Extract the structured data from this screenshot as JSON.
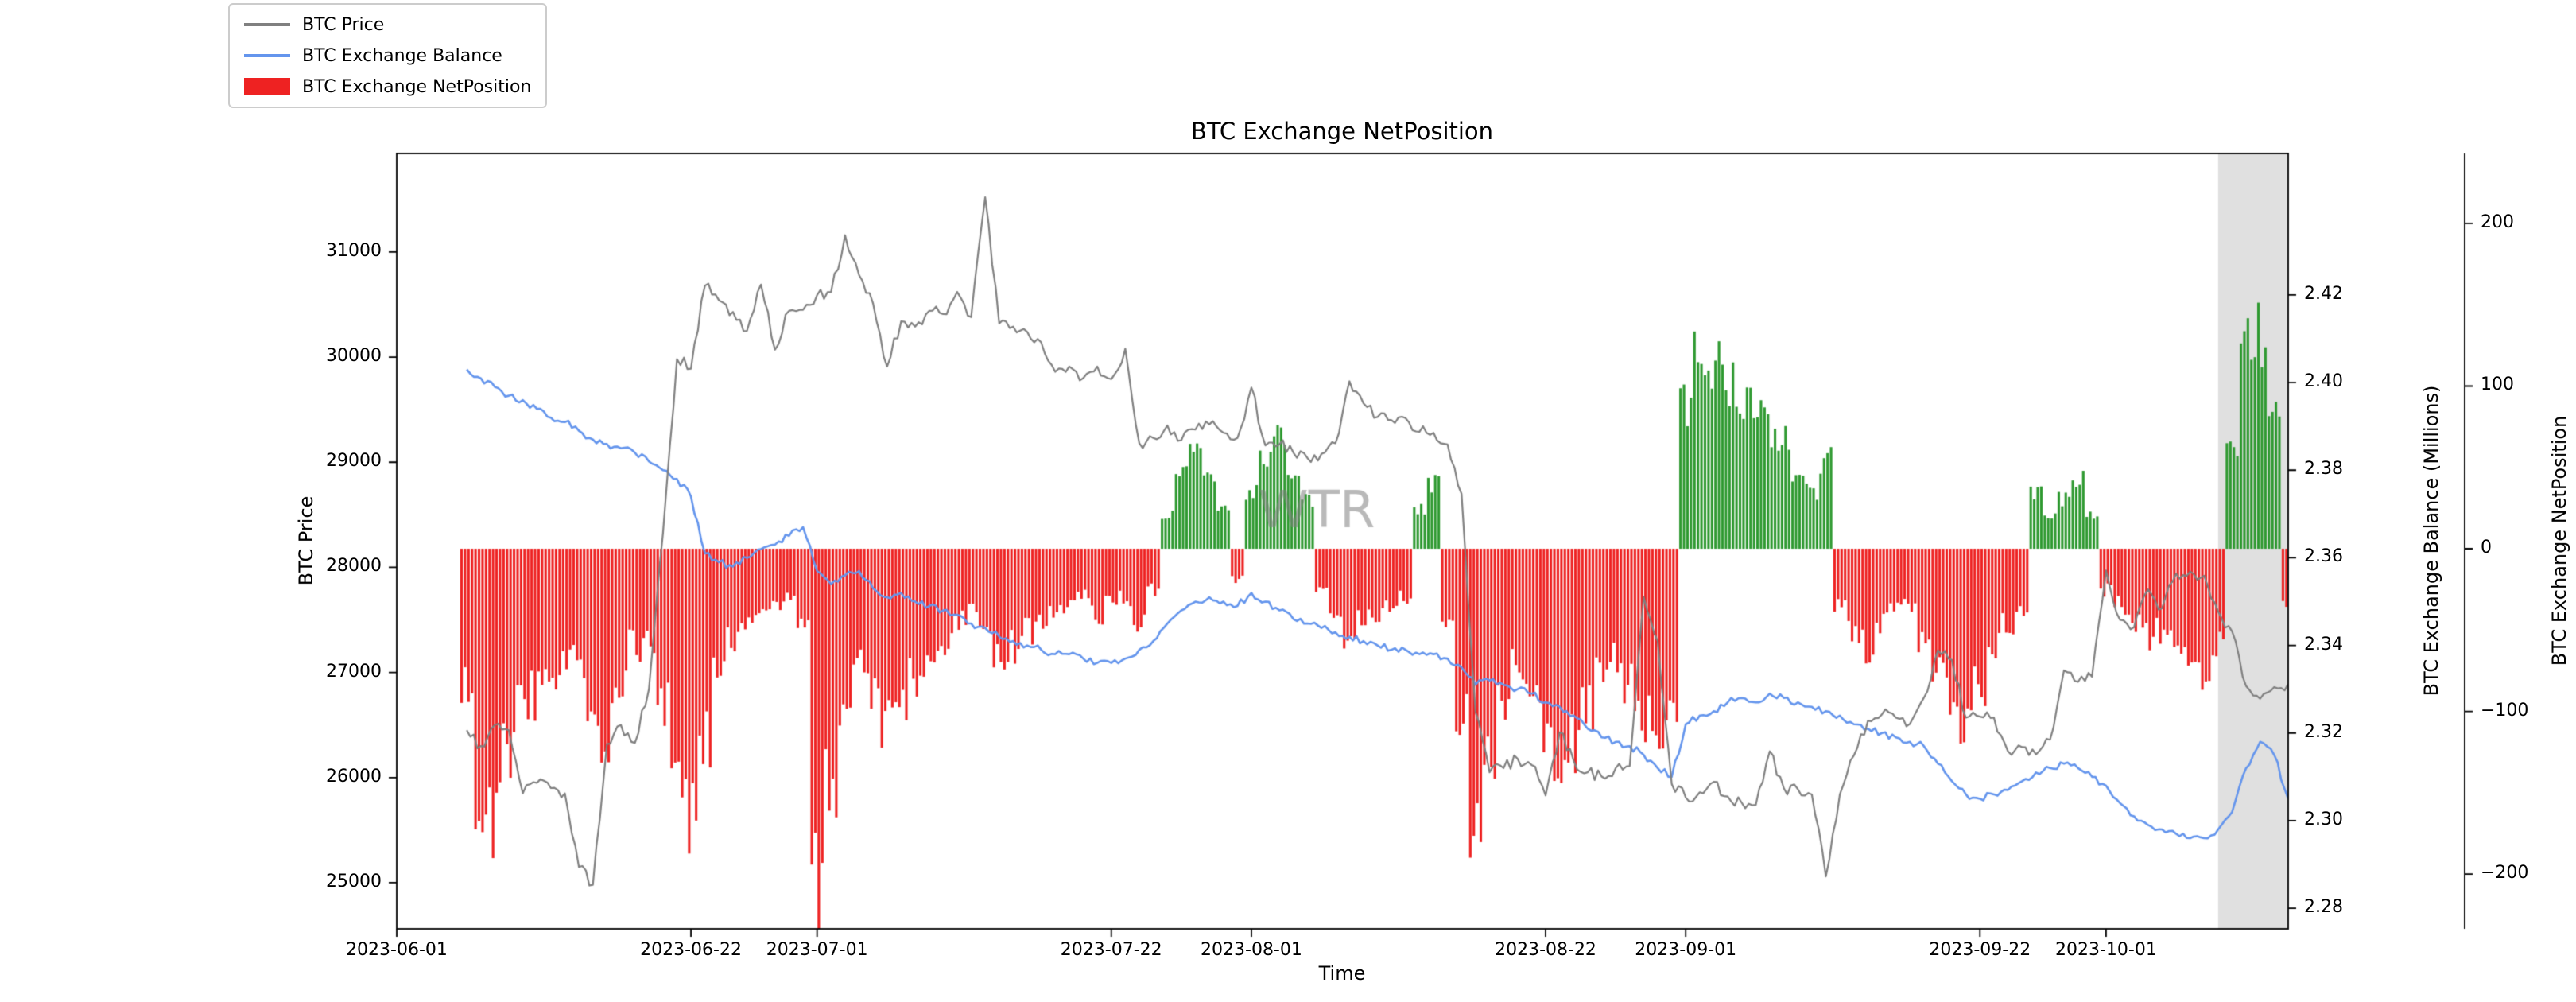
{
  "figure": {
    "title": "BTC Exchange NetPosition",
    "watermark": "WTR",
    "xlabel": "Time",
    "ylabel_left": "BTC Price",
    "ylabel_right1": "BTC Exchange Balance (Millions)",
    "ylabel_right2": "BTC Exchange NetPosition",
    "legend": [
      {
        "label": "BTC Price",
        "type": "line",
        "color": "#808080"
      },
      {
        "label": "BTC Exchange Balance",
        "type": "line",
        "color": "#6495ed"
      },
      {
        "label": "BTC Exchange NetPosition",
        "type": "patch",
        "color": "#ee2222"
      }
    ],
    "legend_position": "upper-left"
  },
  "chart_data": {
    "type": "mixed",
    "title": "BTC Exchange NetPosition",
    "xlabel": "Time",
    "x_start_date": "2023-06-01",
    "series_start_date": "2023-06-06",
    "series_frequency": "daily",
    "x_range_days": [
      0,
      135
    ],
    "x_tick_labels": [
      "2023-06-01",
      "2023-06-22",
      "2023-07-01",
      "2023-07-22",
      "2023-08-01",
      "2023-08-22",
      "2023-09-01",
      "2023-09-22",
      "2023-10-01"
    ],
    "x_tick_day_offsets": [
      0,
      21,
      30,
      51,
      61,
      82,
      92,
      113,
      122
    ],
    "highlight_span_days": [
      130,
      135
    ],
    "highlight_color": "rgba(165,165,165,0.35)",
    "grid": false,
    "price": {
      "name": "BTC Price",
      "kind": "line",
      "axis": "left",
      "color": "#808080",
      "ylim": [
        24561,
        31937
      ],
      "ticks": [
        25000,
        26000,
        27000,
        28000,
        29000,
        30000,
        31000
      ],
      "tick_labels": [
        "25000",
        "26000",
        "27000",
        "28000",
        "29000",
        "30000",
        "31000"
      ],
      "values": [
        26450,
        26300,
        26500,
        26450,
        25850,
        25950,
        25900,
        25850,
        25150,
        24980,
        26320,
        26500,
        26330,
        26840,
        28320,
        29980,
        29890,
        30680,
        30540,
        30430,
        30250,
        30690,
        30070,
        30440,
        30450,
        30590,
        30620,
        31160,
        30780,
        30510,
        29910,
        30340,
        30290,
        30440,
        30410,
        30620,
        30380,
        31520,
        30320,
        30290,
        30240,
        30140,
        29860,
        29910,
        29800,
        29910,
        29790,
        30080,
        29180,
        29230,
        29350,
        29210,
        29310,
        29360,
        29280,
        29230,
        29710,
        29160,
        29170,
        29090,
        29040,
        29080,
        29180,
        29770,
        29560,
        29430,
        29400,
        29420,
        29290,
        29280,
        29170,
        28700,
        26620,
        26050,
        26090,
        26180,
        26120,
        25830,
        26430,
        26160,
        26050,
        26010,
        26090,
        26110,
        27720,
        27300,
        25940,
        25810,
        25860,
        25960,
        25820,
        25760,
        25740,
        26250,
        25900,
        25890,
        25840,
        25060,
        25840,
        26210,
        26540,
        26600,
        26570,
        26510,
        26760,
        27210,
        27120,
        26570,
        26580,
        26570,
        26250,
        26290,
        26220,
        26360,
        27020,
        26910,
        26960,
        27970,
        27500,
        27430,
        27790,
        27610,
        27940,
        27960,
        27920,
        27580,
        27390,
        26870,
        26750,
        26860,
        26890
      ]
    },
    "balance": {
      "name": "BTC Exchange Balance",
      "kind": "line",
      "axis": "right1",
      "units": "Millions BTC",
      "color": "#6495ed",
      "ylim": [
        2.2753,
        2.4523
      ],
      "ticks": [
        2.28,
        2.3,
        2.32,
        2.34,
        2.36,
        2.38,
        2.4,
        2.42
      ],
      "tick_labels": [
        "2.28",
        "2.30",
        "2.32",
        "2.34",
        "2.36",
        "2.38",
        "2.40",
        "2.42"
      ],
      "values": [
        2.403,
        2.401,
        2.399,
        2.397,
        2.396,
        2.394,
        2.392,
        2.391,
        2.389,
        2.387,
        2.386,
        2.385,
        2.384,
        2.382,
        2.38,
        2.378,
        2.374,
        2.361,
        2.359,
        2.358,
        2.36,
        2.362,
        2.363,
        2.365,
        2.367,
        2.357,
        2.354,
        2.356,
        2.357,
        2.353,
        2.351,
        2.352,
        2.35,
        2.349,
        2.348,
        2.347,
        2.345,
        2.344,
        2.342,
        2.341,
        2.34,
        2.339,
        2.338,
        2.338,
        2.337,
        2.336,
        2.336,
        2.337,
        2.339,
        2.341,
        2.345,
        2.348,
        2.35,
        2.351,
        2.35,
        2.349,
        2.352,
        2.35,
        2.348,
        2.346,
        2.345,
        2.344,
        2.343,
        2.342,
        2.341,
        2.34,
        2.339,
        2.339,
        2.338,
        2.338,
        2.337,
        2.335,
        2.331,
        2.332,
        2.331,
        2.33,
        2.329,
        2.327,
        2.326,
        2.324,
        2.321,
        2.319,
        2.318,
        2.317,
        2.315,
        2.312,
        2.31,
        2.322,
        2.324,
        2.325,
        2.327,
        2.328,
        2.327,
        2.329,
        2.328,
        2.327,
        2.326,
        2.325,
        2.324,
        2.322,
        2.321,
        2.32,
        2.319,
        2.318,
        2.317,
        2.313,
        2.309,
        2.306,
        2.305,
        2.306,
        2.307,
        2.309,
        2.311,
        2.312,
        2.313,
        2.312,
        2.31,
        2.308,
        2.304,
        2.301,
        2.299,
        2.298,
        2.297,
        2.296,
        2.296,
        2.298,
        2.302,
        2.312,
        2.318,
        2.315,
        2.305
      ]
    },
    "netposition": {
      "name": "BTC Exchange NetPosition",
      "kind": "bar",
      "axis": "right2",
      "pos_color": "#2e9930",
      "neg_color": "#ee2222",
      "ylim": [
        -233.7,
        243.0
      ],
      "ticks": [
        200,
        100,
        0,
        -100,
        -200
      ],
      "tick_labels": [
        "200",
        "100",
        "0",
        "−100",
        "−200"
      ],
      "values": [
        -85,
        -150,
        -170,
        -125,
        -100,
        -90,
        -80,
        -75,
        -70,
        -95,
        -115,
        -80,
        -60,
        -55,
        -95,
        -140,
        -165,
        -120,
        -70,
        -55,
        -45,
        -40,
        -35,
        -30,
        -45,
        -205,
        -150,
        -95,
        -70,
        -85,
        -110,
        -95,
        -80,
        -70,
        -60,
        -45,
        -40,
        -55,
        -70,
        -60,
        -50,
        -45,
        -40,
        -35,
        -30,
        -40,
        -35,
        -30,
        -45,
        -25,
        20,
        45,
        55,
        40,
        25,
        -20,
        35,
        55,
        67,
        50,
        30,
        -25,
        -40,
        -55,
        -45,
        -40,
        -35,
        -30,
        25,
        40,
        -45,
        -100,
        -180,
        -120,
        -90,
        -75,
        -85,
        -110,
        -140,
        -120,
        -95,
        -80,
        -70,
        -85,
        -110,
        -130,
        -100,
        90,
        128,
        120,
        105,
        95,
        85,
        75,
        65,
        50,
        35,
        55,
        -35,
        -50,
        -60,
        -45,
        -40,
        -35,
        -55,
        -75,
        -90,
        -103,
        -85,
        -60,
        -45,
        -35,
        35,
        20,
        30,
        45,
        20,
        -25,
        -35,
        -45,
        -55,
        -50,
        -60,
        -70,
        -75,
        -60,
        60,
        125,
        130,
        90,
        -38
      ]
    }
  }
}
